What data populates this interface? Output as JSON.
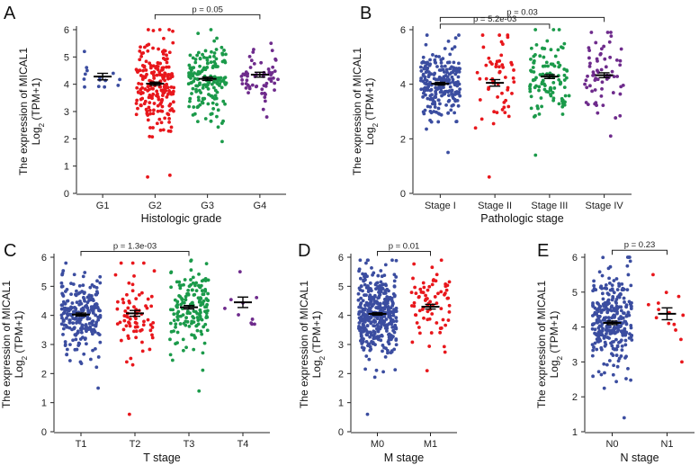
{
  "figure": {
    "y_label_line1": "The expression of MICAL1",
    "y_label_line2": "Log",
    "y_label_sub": "2",
    "y_label_line2b": " (TPM+1)"
  },
  "colors": {
    "blue": "#3b4da0",
    "red": "#e8171c",
    "green": "#1b9a4a",
    "purple": "#6e2b8c"
  },
  "chart_data": [
    {
      "panel": "A",
      "type": "scatter",
      "subtype": "jitter-strip with mean ± SEM",
      "xlabel": "Histologic grade",
      "ylabel": "The expression of MICAL1 Log2 (TPM+1)",
      "ylim": [
        0,
        6
      ],
      "yticks": [
        0,
        1,
        2,
        3,
        4,
        5,
        6
      ],
      "categories": [
        "G1",
        "G2",
        "G3",
        "G4"
      ],
      "groups": [
        {
          "name": "G1",
          "color": "#3b4da0",
          "n": 14,
          "mean": 4.28,
          "sem": 0.12,
          "min": 3.9,
          "max": 5.2
        },
        {
          "name": "G2",
          "color": "#e8171c",
          "n": 220,
          "mean": 4.02,
          "sem": 0.06,
          "min": 0.6,
          "max": 6.0
        },
        {
          "name": "G3",
          "color": "#1b9a4a",
          "n": 170,
          "mean": 4.2,
          "sem": 0.06,
          "min": 1.9,
          "max": 6.0
        },
        {
          "name": "G4",
          "color": "#6e2b8c",
          "n": 60,
          "mean": 4.35,
          "sem": 0.09,
          "min": 2.8,
          "max": 5.5
        }
      ],
      "comparisons": [
        {
          "from": "G2",
          "to": "G4",
          "label": "p = 0.05",
          "y": 6.55
        }
      ]
    },
    {
      "panel": "B",
      "type": "scatter",
      "subtype": "jitter-strip with mean ± SEM",
      "xlabel": "Pathologic stage",
      "ylabel": "The expression of MICAL1 Log2 (TPM+1)",
      "ylim": [
        0,
        6
      ],
      "yticks": [
        0,
        2,
        4,
        6
      ],
      "categories": [
        "Stage I",
        "Stage II",
        "Stage III",
        "Stage IV"
      ],
      "groups": [
        {
          "name": "Stage I",
          "color": "#3b4da0",
          "n": 230,
          "mean": 4.02,
          "sem": 0.05,
          "min": 1.5,
          "max": 5.8
        },
        {
          "name": "Stage II",
          "color": "#e8171c",
          "n": 55,
          "mean": 4.05,
          "sem": 0.12,
          "min": 0.6,
          "max": 5.8
        },
        {
          "name": "Stage III",
          "color": "#1b9a4a",
          "n": 110,
          "mean": 4.28,
          "sem": 0.07,
          "min": 1.4,
          "max": 6.0
        },
        {
          "name": "Stage IV",
          "color": "#6e2b8c",
          "n": 65,
          "mean": 4.33,
          "sem": 0.09,
          "min": 2.1,
          "max": 5.9
        }
      ],
      "comparisons": [
        {
          "from": "Stage I",
          "to": "Stage III",
          "label": "p = 5.2e-03",
          "y": 6.2
        },
        {
          "from": "Stage I",
          "to": "Stage IV",
          "label": "p = 0.03",
          "y": 6.45
        }
      ]
    },
    {
      "panel": "C",
      "type": "scatter",
      "subtype": "jitter-strip with mean ± SEM",
      "xlabel": "T stage",
      "ylabel": "The expression of MICAL1 Log2 (TPM+1)",
      "ylim": [
        0,
        6
      ],
      "yticks": [
        0,
        1,
        2,
        3,
        4,
        5,
        6
      ],
      "categories": [
        "T1",
        "T2",
        "T3",
        "T4"
      ],
      "groups": [
        {
          "name": "T1",
          "color": "#3b4da0",
          "n": 240,
          "mean": 4.03,
          "sem": 0.05,
          "min": 1.5,
          "max": 5.8
        },
        {
          "name": "T2",
          "color": "#e8171c",
          "n": 75,
          "mean": 4.07,
          "sem": 0.1,
          "min": 0.6,
          "max": 5.8
        },
        {
          "name": "T3",
          "color": "#1b9a4a",
          "n": 160,
          "mean": 4.28,
          "sem": 0.06,
          "min": 1.4,
          "max": 5.9
        },
        {
          "name": "T4",
          "color": "#6e2b8c",
          "n": 10,
          "mean": 4.45,
          "sem": 0.18,
          "min": 3.7,
          "max": 5.5
        }
      ],
      "comparisons": [
        {
          "from": "T1",
          "to": "T3",
          "label": "p = 1.3e-03",
          "y": 6.2
        }
      ]
    },
    {
      "panel": "D",
      "type": "scatter",
      "subtype": "jitter-strip with mean ± SEM",
      "xlabel": "M stage",
      "ylabel": "The expression of MICAL1 Log2 (TPM+1)",
      "ylim": [
        0,
        6
      ],
      "yticks": [
        0,
        1,
        2,
        3,
        4,
        5,
        6
      ],
      "categories": [
        "M0",
        "M1"
      ],
      "groups": [
        {
          "name": "M0",
          "color": "#3b4da0",
          "n": 420,
          "mean": 4.05,
          "sem": 0.04,
          "min": 0.6,
          "max": 5.9
        },
        {
          "name": "M1",
          "color": "#e8171c",
          "n": 75,
          "mean": 4.3,
          "sem": 0.08,
          "min": 2.1,
          "max": 5.9
        }
      ],
      "comparisons": [
        {
          "from": "M0",
          "to": "M1",
          "label": "p = 0.01",
          "y": 6.2
        }
      ]
    },
    {
      "panel": "E",
      "type": "scatter",
      "subtype": "jitter-strip with mean ± SEM",
      "xlabel": "N stage",
      "ylabel": "The expression of MICAL1 Log2 (TPM+1)",
      "ylim": [
        1,
        6
      ],
      "yticks": [
        1,
        2,
        3,
        4,
        5,
        6
      ],
      "categories": [
        "N0",
        "N1"
      ],
      "groups": [
        {
          "name": "N0",
          "color": "#3b4da0",
          "n": 300,
          "mean": 4.12,
          "sem": 0.05,
          "min": 1.4,
          "max": 6.0
        },
        {
          "name": "N1",
          "color": "#e8171c",
          "n": 15,
          "mean": 4.38,
          "sem": 0.17,
          "min": 3.0,
          "max": 5.5
        }
      ],
      "comparisons": [
        {
          "from": "N0",
          "to": "N1",
          "label": "p = 0.23",
          "y": 6.2
        }
      ]
    }
  ]
}
